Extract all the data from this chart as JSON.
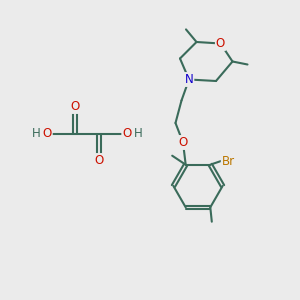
{
  "bg_color": "#ebebeb",
  "bond_color": "#3a6b5a",
  "o_color": "#cc1100",
  "n_color": "#1100cc",
  "br_color": "#bb7700",
  "line_width": 1.5,
  "font_size_atom": 8.5,
  "font_size_small": 7.0,
  "xlim": [
    0,
    10
  ],
  "ylim": [
    0,
    10
  ]
}
